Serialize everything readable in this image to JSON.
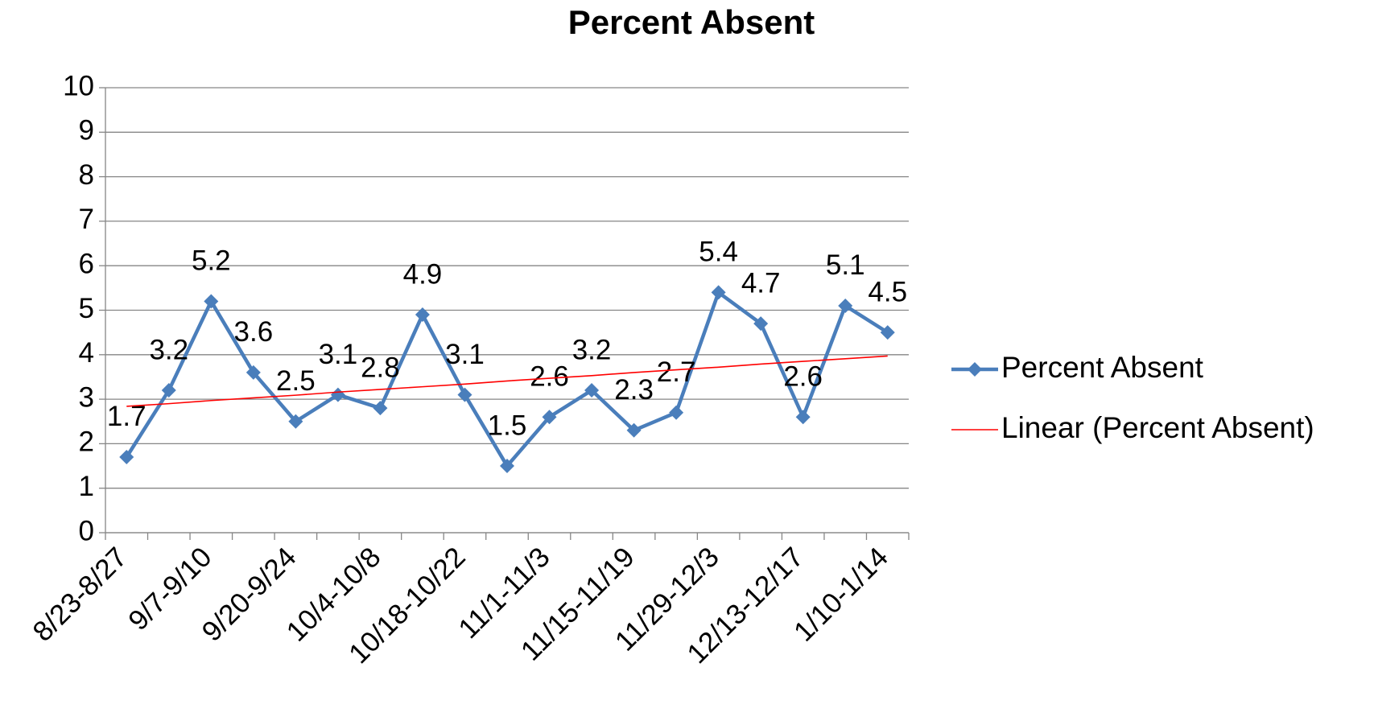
{
  "chart_data": {
    "type": "line",
    "title": "Percent Absent",
    "categories": [
      "8/23-8/27",
      null,
      "9/7-9/10",
      null,
      "9/20-9/24",
      null,
      "10/4-10/8",
      null,
      "10/18-10/22",
      null,
      "11/1-11/3",
      null,
      "11/15-11/19",
      null,
      "11/29-12/3",
      null,
      "12/13-12/17",
      null,
      "1/10-1/14"
    ],
    "series": [
      {
        "name": "Percent Absent",
        "color": "#4a7ebb",
        "marker": "diamond",
        "data_labels": true,
        "values": [
          1.7,
          3.2,
          5.2,
          3.6,
          2.5,
          3.1,
          2.8,
          4.9,
          3.1,
          1.5,
          2.6,
          3.2,
          2.3,
          2.7,
          5.4,
          4.7,
          2.6,
          5.1,
          4.5
        ]
      },
      {
        "name": "Linear (Percent Absent)",
        "color": "#ff0000",
        "marker": "none",
        "data_labels": false,
        "values": [
          2.84,
          2.9,
          2.97,
          3.03,
          3.09,
          3.16,
          3.22,
          3.28,
          3.34,
          3.41,
          3.47,
          3.53,
          3.6,
          3.66,
          3.72,
          3.79,
          3.85,
          3.91,
          3.97
        ]
      }
    ],
    "ylim": [
      0,
      10
    ],
    "yticks": [
      0,
      1,
      2,
      3,
      4,
      5,
      6,
      7,
      8,
      9,
      10
    ],
    "grid": true,
    "legend": "right"
  }
}
